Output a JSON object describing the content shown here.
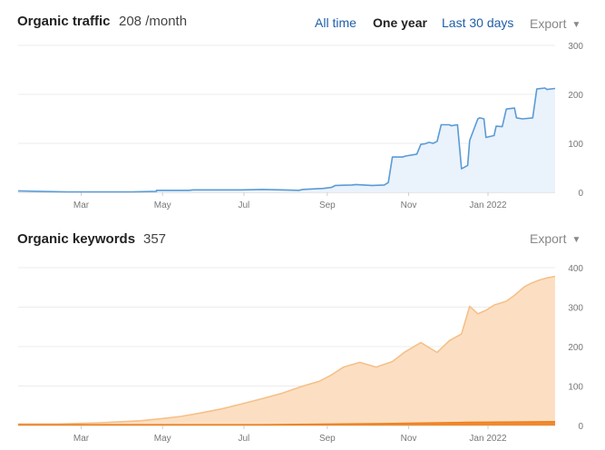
{
  "traffic": {
    "title": "Organic traffic",
    "value": "208 /month",
    "ranges": [
      "All time",
      "One year",
      "Last 30 days"
    ],
    "active_range": "One year",
    "export_label": "Export"
  },
  "keywords": {
    "title": "Organic keywords",
    "value": "357",
    "export_label": "Export"
  },
  "chart_data": [
    {
      "type": "area",
      "x_ticks": [
        "Mar",
        "May",
        "Jul",
        "Sep",
        "Nov",
        "Jan 2022"
      ],
      "x_tick_pos": [
        1.55,
        3.55,
        5.55,
        7.6,
        9.6,
        11.55
      ],
      "ylim": [
        0,
        300
      ],
      "y_ticks": [
        0,
        100,
        200,
        300
      ],
      "grid": true,
      "line_color": "#5b9bd5",
      "fill_color": "#eaf2fb",
      "series": [
        {
          "x": [
            0,
            0.5,
            1.2,
            2.0,
            2.8,
            3.4,
            3.4,
            4.2,
            4.3,
            5.0,
            5.5,
            6.0,
            6.5,
            6.9,
            7.0,
            7.5,
            7.7,
            7.8,
            8.2,
            8.3,
            8.7,
            9.0,
            9.1,
            9.2,
            9.45,
            9.52,
            9.8,
            9.9,
            10.0,
            10.1,
            10.2,
            10.3,
            10.4,
            10.6,
            10.65,
            10.8,
            10.9,
            11.05,
            11.1,
            11.3,
            11.35,
            11.45,
            11.5,
            11.7,
            11.75,
            11.9,
            12.0,
            12.2,
            12.25,
            12.4,
            12.65,
            12.75,
            12.95,
            13.0,
            13.2
          ],
          "y": [
            3,
            2,
            1,
            1,
            1,
            2,
            4,
            4,
            5,
            5,
            5,
            6,
            5,
            4,
            6,
            8,
            10,
            14,
            15,
            16,
            14,
            15,
            20,
            72,
            72,
            74,
            78,
            98,
            99,
            102,
            100,
            104,
            138,
            138,
            136,
            138,
            48,
            55,
            106,
            150,
            152,
            150,
            112,
            116,
            135,
            134,
            170,
            172,
            152,
            150,
            152,
            211,
            213,
            210,
            212
          ]
        }
      ]
    },
    {
      "type": "area",
      "x_ticks": [
        "Mar",
        "May",
        "Jul",
        "Sep",
        "Nov",
        "Jan 2022"
      ],
      "x_tick_pos": [
        1.55,
        3.55,
        5.55,
        7.6,
        9.6,
        11.55
      ],
      "ylim": [
        0,
        400
      ],
      "y_ticks": [
        0,
        100,
        200,
        300,
        400
      ],
      "grid": true,
      "line_color": "#f5c08a",
      "fill_color": "#fcdfc2",
      "series": [
        {
          "x": [
            0,
            1,
            2,
            3,
            3.5,
            4,
            4.5,
            5,
            5.5,
            6,
            6.5,
            7,
            7.4,
            7.7,
            8,
            8.4,
            8.8,
            9.2,
            9.5,
            9.9,
            10.3,
            10.6,
            10.9,
            11.1,
            11.3,
            11.5,
            11.7,
            12.0,
            12.2,
            12.45,
            12.6,
            12.8,
            13.0,
            13.2
          ],
          "y": [
            4,
            4,
            7,
            12,
            17,
            23,
            32,
            42,
            55,
            68,
            82,
            100,
            112,
            128,
            148,
            160,
            148,
            162,
            186,
            210,
            185,
            215,
            232,
            302,
            283,
            292,
            305,
            315,
            330,
            352,
            360,
            368,
            374,
            378
          ]
        },
        {
          "x": [
            0,
            6,
            9,
            11,
            13.2
          ],
          "y": [
            2,
            2,
            5,
            8,
            10
          ],
          "line_color": "#f0801e",
          "fill_color": "#f0801e"
        }
      ]
    }
  ]
}
